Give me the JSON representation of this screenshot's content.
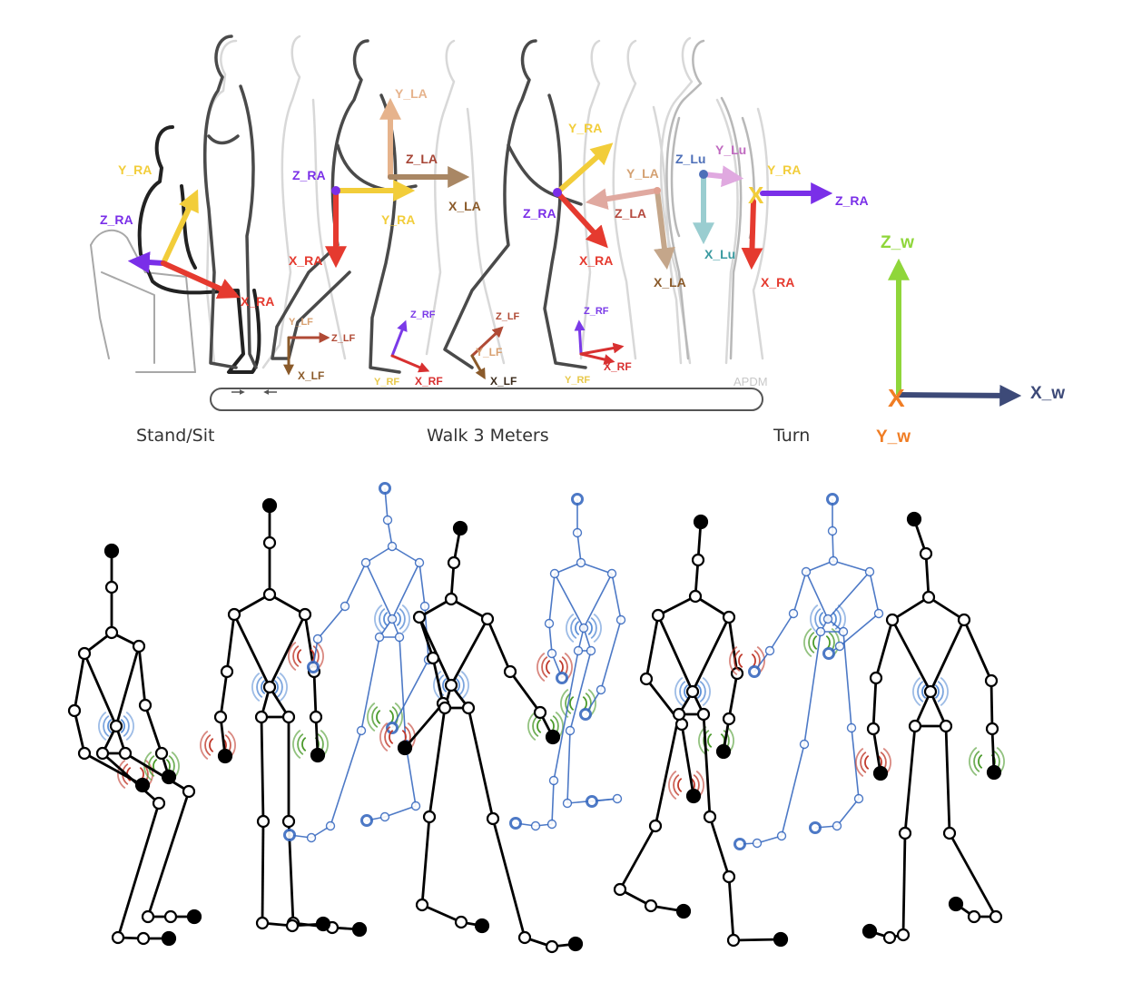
{
  "colors": {
    "X_RA": "#e53a2f",
    "Y_RA": "#f2cd3a",
    "Z_RA": "#7a2fe8",
    "X_LA": "#a98764",
    "Y_LA": "#e6b38c",
    "Z_LA": "#a64435",
    "Y_LA_turn": "#d4a172",
    "Z_LA_turn": "#b54a3f",
    "X_Lu": "#7ebfc4",
    "Y_Lu": "#d69ad6",
    "Z_Lu": "#4d6fb8",
    "X_LF": "#8a5a2a",
    "Y_LF": "#d8a070",
    "Z_LF": "#b04a35",
    "X_RF": "#d83030",
    "Y_RF": "#e8c84a",
    "Z_RF": "#7a3ae8",
    "X_w": "#3d4a78",
    "Y_w": "#f07d24",
    "Z_w": "#8fd63a",
    "skeleton_black": "#000000",
    "skeleton_blue": "#3a6bc0",
    "sensor_blue": "#5b8fd6",
    "sensor_red": "#c0392b",
    "sensor_green": "#4a9a2a"
  },
  "phases": {
    "stand_sit": "Stand/Sit",
    "walk": "Walk 3 Meters",
    "turn": "Turn"
  },
  "watermark": "APDM",
  "world_axes": {
    "x": "X_w",
    "y": "Y_w",
    "z": "Z_w",
    "y_mark": "X"
  },
  "frames": {
    "sit": {
      "y_ra": "Y_RA",
      "z_ra": "Z_RA",
      "x_ra": "X_RA"
    },
    "walk1": {
      "z_ra": "Z_RA",
      "x_ra": "X_RA",
      "y_ra": "Y_RA",
      "y_la": "Y_LA",
      "z_la": "Z_LA",
      "x_la": "X_LA"
    },
    "lf1": {
      "y_lf": "Y_LF",
      "z_lf": "Z_LF",
      "x_lf": "X_LF"
    },
    "rf1": {
      "z_rf": "Z_RF",
      "y_rf": "Y_RF",
      "x_rf": "X_RF"
    },
    "walk2": {
      "y_ra": "Y_RA",
      "z_ra": "Z_RA",
      "x_ra": "X_RA"
    },
    "lf2": {
      "z_lf": "Z_LF",
      "y_lf": "Y_LF",
      "x_lf": "X_LF"
    },
    "rf2": {
      "z_rf": "Z_RF",
      "y_rf": "Y_RF",
      "x_rf": "X_RF"
    },
    "turn": {
      "y_la": "Y_LA",
      "z_la": "Z_LA",
      "x_la": "X_LA",
      "z_lu": "Z_Lu",
      "y_lu": "Y_Lu",
      "x_lu": "X_Lu",
      "y_ra": "Y_RA",
      "z_ra": "Z_RA",
      "x_ra": "X_RA",
      "ra_mark": "X"
    }
  }
}
